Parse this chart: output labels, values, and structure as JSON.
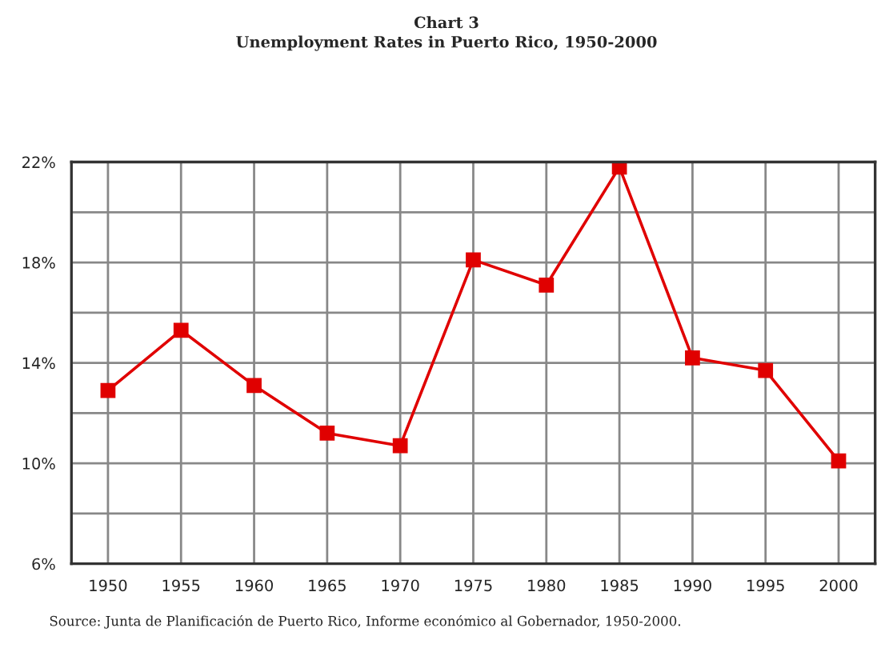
{
  "chart_data": {
    "type": "line",
    "title": "Chart 3",
    "subtitle": "Unemployment Rates in Puerto Rico, 1950-2000",
    "categories": [
      "1950",
      "1955",
      "1960",
      "1965",
      "1970",
      "1975",
      "1980",
      "1985",
      "1990",
      "1995",
      "2000"
    ],
    "series": [
      {
        "color": "#e00000",
        "values": [
          12.9,
          15.3,
          13.1,
          11.2,
          10.7,
          18.1,
          17.1,
          21.8,
          14.2,
          13.7,
          10.1
        ]
      }
    ],
    "ylim": [
      6,
      22
    ],
    "yticks": [
      {
        "value": 6,
        "label": "6%"
      },
      {
        "value": 8,
        "label": null
      },
      {
        "value": 10,
        "label": "10%"
      },
      {
        "value": 12,
        "label": null
      },
      {
        "value": 14,
        "label": "14%"
      },
      {
        "value": 16,
        "label": null
      },
      {
        "value": 18,
        "label": "18%"
      },
      {
        "value": 20,
        "label": null
      },
      {
        "value": 22,
        "label": "22%"
      }
    ],
    "grid": true,
    "marker": "square",
    "line_style": "solid",
    "annotations": [
      "Source: Junta de Planificación de Puerto Rico, Informe económico al Gobernador, 1950-2000."
    ]
  }
}
